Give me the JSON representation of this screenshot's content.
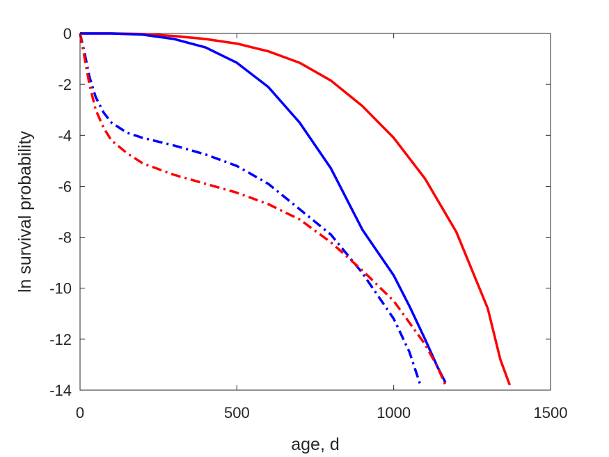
{
  "chart_data": {
    "type": "line",
    "title": "",
    "xlabel": "age, d",
    "ylabel": "ln survival probability",
    "xlim": [
      0,
      1500
    ],
    "ylim": [
      -14,
      0
    ],
    "xticks": [
      0,
      500,
      1000,
      1500
    ],
    "yticks": [
      0,
      -2,
      -4,
      -6,
      -8,
      -10,
      -12,
      -14
    ],
    "xtick_labels": [
      "0",
      "500",
      "1000",
      "1500"
    ],
    "ytick_labels": [
      "0",
      "-2",
      "-4",
      "-6",
      "-8",
      "-10",
      "-12",
      "-14"
    ],
    "grid": false,
    "legend": "none",
    "series": [
      {
        "color": "#ff0000",
        "style": "solid",
        "x": [
          0,
          100,
          200,
          300,
          400,
          500,
          600,
          700,
          800,
          900,
          1000,
          1100,
          1200,
          1300,
          1340,
          1370
        ],
        "y": [
          0,
          0,
          -0.02,
          -0.1,
          -0.22,
          -0.4,
          -0.7,
          -1.15,
          -1.85,
          -2.85,
          -4.1,
          -5.7,
          -7.8,
          -10.8,
          -12.8,
          -13.8
        ]
      },
      {
        "color": "#0000ff",
        "style": "solid",
        "x": [
          0,
          100,
          200,
          300,
          400,
          500,
          600,
          700,
          800,
          900,
          1000,
          1050,
          1100,
          1140,
          1165
        ],
        "y": [
          0,
          0,
          -0.05,
          -0.22,
          -0.55,
          -1.15,
          -2.1,
          -3.5,
          -5.3,
          -7.7,
          -9.5,
          -10.7,
          -12.0,
          -13.1,
          -13.7
        ]
      },
      {
        "color": "#0000ff",
        "style": "dashdot",
        "x": [
          0,
          15,
          30,
          50,
          75,
          100,
          150,
          200,
          300,
          400,
          500,
          600,
          700,
          800,
          900,
          1000,
          1050,
          1085
        ],
        "y": [
          0,
          -0.8,
          -1.7,
          -2.5,
          -3.1,
          -3.5,
          -3.9,
          -4.1,
          -4.4,
          -4.75,
          -5.2,
          -5.9,
          -6.9,
          -7.9,
          -9.4,
          -11.2,
          -12.5,
          -13.8
        ]
      },
      {
        "color": "#ff0000",
        "style": "dashdot",
        "x": [
          0,
          15,
          30,
          50,
          75,
          100,
          150,
          200,
          300,
          400,
          500,
          600,
          700,
          800,
          900,
          1000,
          1100,
          1140,
          1165
        ],
        "y": [
          0,
          -1.0,
          -2.0,
          -3.0,
          -3.7,
          -4.2,
          -4.7,
          -5.1,
          -5.55,
          -5.9,
          -6.25,
          -6.7,
          -7.3,
          -8.2,
          -9.3,
          -10.5,
          -12.2,
          -13.1,
          -13.8
        ]
      }
    ]
  }
}
